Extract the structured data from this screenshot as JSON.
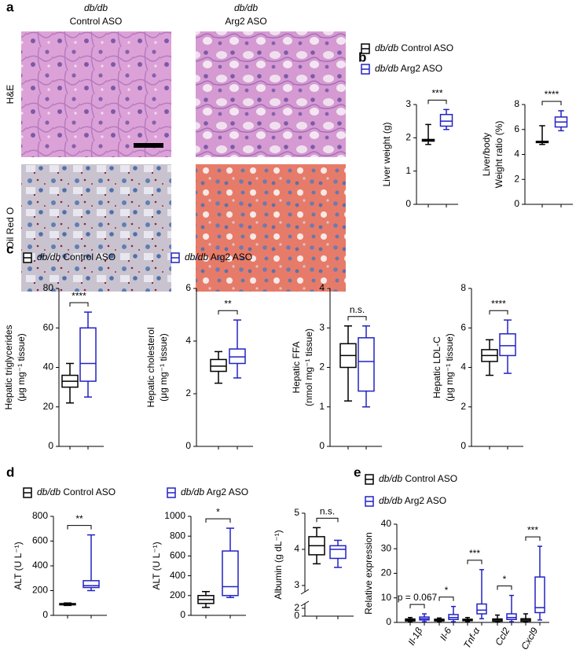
{
  "panel_labels": [
    "a",
    "b",
    "c",
    "d",
    "e"
  ],
  "micrographs": {
    "columns": [
      {
        "genotype": "db/db",
        "treatment": "Control ASO"
      },
      {
        "genotype": "db/db",
        "treatment": "Arg2 ASO"
      }
    ],
    "rows": [
      "H&E",
      "Oil Red O"
    ]
  },
  "chart_data": [
    {
      "type": "box",
      "ylabel": [
        "Liver weight (g)"
      ],
      "ylim": [
        0,
        3
      ],
      "yticks": [
        0,
        1,
        2,
        3
      ],
      "significance": "***",
      "legend": true,
      "series": [
        {
          "name": "db/db Control ASO",
          "color": "#000000",
          "min": [
            1.8
          ],
          "q1": [
            1.9
          ],
          "median": [
            1.93
          ],
          "q3": [
            1.95
          ],
          "max": [
            2.4
          ]
        },
        {
          "name": "db/db Arg2 ASO",
          "color": "#2222c4",
          "min": [
            2.25
          ],
          "q1": [
            2.35
          ],
          "median": [
            2.5
          ],
          "q3": [
            2.7
          ],
          "max": [
            2.85
          ]
        }
      ]
    },
    {
      "type": "box",
      "ylabel": [
        "Liver/body",
        "Weight ratio (%)"
      ],
      "ylim": [
        0,
        8
      ],
      "yticks": [
        0,
        2,
        4,
        6,
        8
      ],
      "significance": "****",
      "series": [
        {
          "color": "#000000",
          "min": [
            4.8
          ],
          "q1": [
            4.95
          ],
          "median": [
            5.0
          ],
          "q3": [
            5.05
          ],
          "max": [
            6.3
          ]
        },
        {
          "color": "#2222c4",
          "min": [
            5.9
          ],
          "q1": [
            6.2
          ],
          "median": [
            6.6
          ],
          "q3": [
            7.0
          ],
          "max": [
            7.5
          ]
        }
      ]
    },
    {
      "type": "box",
      "ylabel": [
        "Hepatic triglycerides",
        "(μg mg⁻¹ tissue)"
      ],
      "ylim": [
        0,
        80
      ],
      "yticks": [
        0,
        20,
        40,
        60,
        80
      ],
      "significance": "****",
      "legend": true,
      "series": [
        {
          "name": "db/db Control ASO",
          "color": "#000000",
          "min": [
            22
          ],
          "q1": [
            30
          ],
          "median": [
            33
          ],
          "q3": [
            36
          ],
          "max": [
            42
          ]
        },
        {
          "name": "db/db Arg2 ASO",
          "color": "#2222c4",
          "min": [
            25
          ],
          "q1": [
            33
          ],
          "median": [
            42
          ],
          "q3": [
            60
          ],
          "max": [
            68
          ]
        }
      ]
    },
    {
      "type": "box",
      "ylabel": [
        "Hepatic cholesterol",
        "(μg mg⁻¹ tissue)"
      ],
      "ylim": [
        0,
        6
      ],
      "yticks": [
        0,
        2,
        4,
        6
      ],
      "significance": "**",
      "series": [
        {
          "color": "#000000",
          "min": [
            2.4
          ],
          "q1": [
            2.85
          ],
          "median": [
            3.05
          ],
          "q3": [
            3.3
          ],
          "max": [
            3.6
          ]
        },
        {
          "color": "#2222c4",
          "min": [
            2.6
          ],
          "q1": [
            3.15
          ],
          "median": [
            3.4
          ],
          "q3": [
            3.7
          ],
          "max": [
            4.8
          ]
        }
      ]
    },
    {
      "type": "box",
      "ylabel": [
        "Hepatic FFA",
        "(nmol mg⁻¹ tissue)"
      ],
      "ylim": [
        0,
        4
      ],
      "yticks": [
        0,
        1,
        2,
        3,
        4
      ],
      "significance": "n.s.",
      "series": [
        {
          "color": "#000000",
          "min": [
            1.15
          ],
          "q1": [
            2.0
          ],
          "median": [
            2.3
          ],
          "q3": [
            2.6
          ],
          "max": [
            3.05
          ]
        },
        {
          "color": "#2222c4",
          "min": [
            1.0
          ],
          "q1": [
            1.4
          ],
          "median": [
            2.15
          ],
          "q3": [
            2.75
          ],
          "max": [
            3.05
          ]
        }
      ]
    },
    {
      "type": "box",
      "ylabel": [
        "Hepatic LDL-C",
        "(μg mg⁻¹ tissue)"
      ],
      "ylim": [
        0,
        8
      ],
      "yticks": [
        0,
        2,
        4,
        6,
        8
      ],
      "significance": "****",
      "series": [
        {
          "color": "#000000",
          "min": [
            3.6
          ],
          "q1": [
            4.3
          ],
          "median": [
            4.6
          ],
          "q3": [
            4.9
          ],
          "max": [
            5.4
          ]
        },
        {
          "color": "#2222c4",
          "min": [
            3.7
          ],
          "q1": [
            4.6
          ],
          "median": [
            5.1
          ],
          "q3": [
            5.7
          ],
          "max": [
            6.4
          ]
        }
      ]
    },
    {
      "type": "box",
      "ylabel": [
        "ALT (U L⁻¹)"
      ],
      "ylim": [
        0,
        800
      ],
      "yticks": [
        0,
        200,
        400,
        600,
        800
      ],
      "significance": "**",
      "legend": true,
      "series": [
        {
          "name": "db/db Control ASO",
          "color": "#000000",
          "min": [
            80
          ],
          "q1": [
            85
          ],
          "median": [
            90
          ],
          "q3": [
            95
          ],
          "max": [
            100
          ]
        },
        {
          "name": "db/db Arg2 ASO",
          "color": "#2222c4",
          "min": [
            200
          ],
          "q1": [
            225
          ],
          "median": [
            240
          ],
          "q3": [
            280
          ],
          "max": [
            650
          ]
        }
      ]
    },
    {
      "type": "box",
      "ylabel": [
        "ALT (U L⁻¹)"
      ],
      "ylim": [
        0,
        1000
      ],
      "yticks": [
        0,
        200,
        400,
        600,
        800,
        1000
      ],
      "significance": "*",
      "series": [
        {
          "color": "#000000",
          "min": [
            80
          ],
          "q1": [
            120
          ],
          "median": [
            160
          ],
          "q3": [
            200
          ],
          "max": [
            240
          ]
        },
        {
          "color": "#2222c4",
          "min": [
            180
          ],
          "q1": [
            200
          ],
          "median": [
            290
          ],
          "q3": [
            650
          ],
          "max": [
            880
          ]
        }
      ]
    },
    {
      "type": "box",
      "ylabel": [
        "Albumin (g dL⁻¹)"
      ],
      "ylim": [
        0,
        5
      ],
      "yticks": [
        0,
        2,
        3,
        4,
        5
      ],
      "axis_break": [
        2,
        3
      ],
      "significance": "n.s.",
      "series": [
        {
          "color": "#000000",
          "min": [
            3.6
          ],
          "q1": [
            3.85
          ],
          "median": [
            4.1
          ],
          "q3": [
            4.35
          ],
          "max": [
            4.6
          ]
        },
        {
          "color": "#2222c4",
          "min": [
            3.5
          ],
          "q1": [
            3.75
          ],
          "median": [
            4.0
          ],
          "q3": [
            4.1
          ],
          "max": [
            4.25
          ]
        }
      ]
    },
    {
      "type": "box",
      "ylabel": [
        "Relative expression"
      ],
      "ylim": [
        0,
        40
      ],
      "yticks": [
        0,
        10,
        20,
        30,
        40
      ],
      "legend": true,
      "categories": [
        "Il-1β",
        "Il-6",
        "Tnf-α",
        "Ccl2",
        "Cxcl9"
      ],
      "significance": [
        "p = 0.067",
        "*",
        "***",
        "*",
        "***"
      ],
      "series": [
        {
          "name": "db/db Control ASO",
          "color": "#000000",
          "min": [
            0.2,
            0.2,
            0.3,
            0.1,
            0.1
          ],
          "q1": [
            0.6,
            0.6,
            0.7,
            0.5,
            0.5
          ],
          "median": [
            1.0,
            1.0,
            1.0,
            1.0,
            1.0
          ],
          "q3": [
            1.4,
            1.3,
            1.3,
            1.4,
            1.5
          ],
          "max": [
            2.0,
            1.8,
            2.0,
            3.0,
            3.5
          ]
        },
        {
          "name": "db/db Arg2 ASO",
          "color": "#2222c4",
          "min": [
            0.3,
            0.3,
            1.5,
            0.3,
            1.0
          ],
          "q1": [
            1.0,
            1.2,
            3.5,
            1.2,
            4.0
          ],
          "median": [
            1.5,
            2.0,
            5.0,
            2.0,
            6.0
          ],
          "q3": [
            2.2,
            3.2,
            7.5,
            3.5,
            18.5
          ],
          "max": [
            3.5,
            6.5,
            21.5,
            11.0,
            31.0
          ]
        }
      ]
    }
  ]
}
